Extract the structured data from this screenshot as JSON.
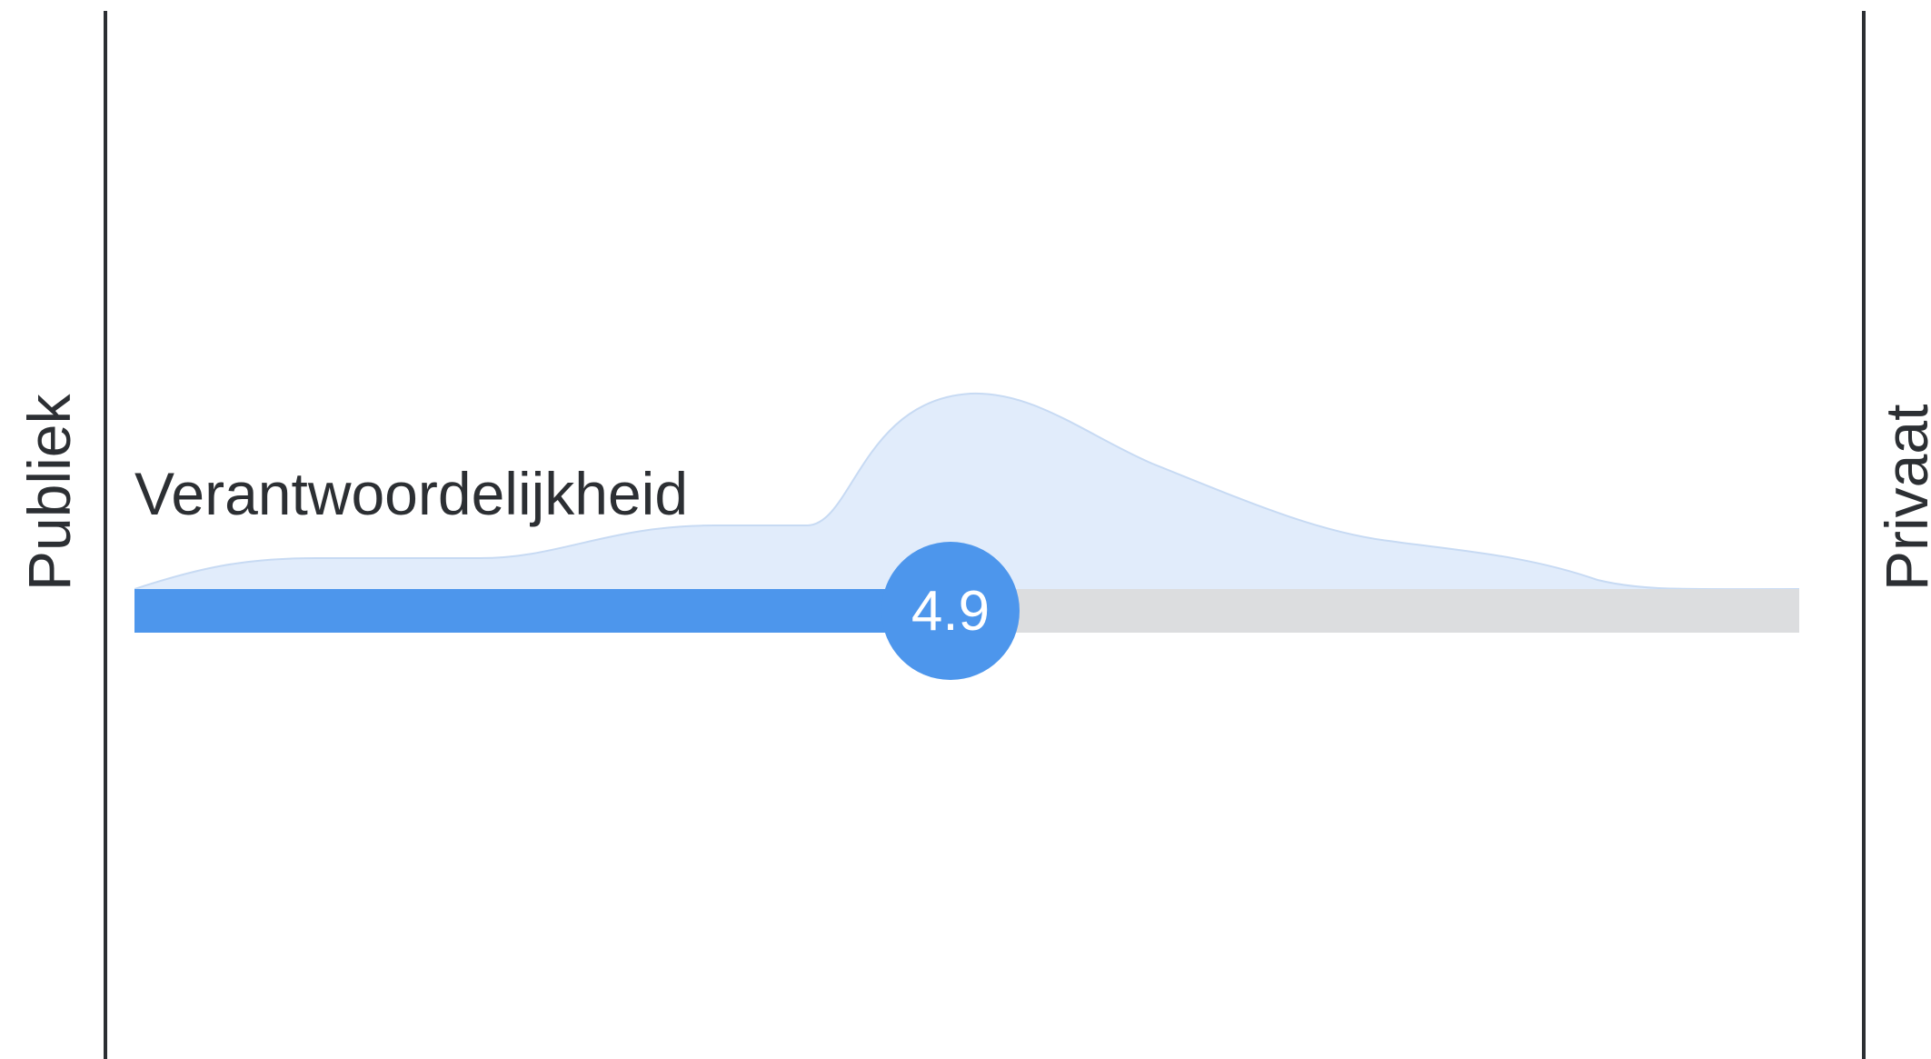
{
  "slider": {
    "left_pole_label": "Publiek",
    "right_pole_label": "Privaat",
    "metric_label": "Verantwoordelijkheid",
    "value_label": "4.9",
    "fill_fraction": 0.49
  },
  "colors": {
    "accent": "#4d96ec",
    "track": "#dcdddf",
    "distribution_fill": "#e1ecfb",
    "text": "#2c2f33"
  }
}
